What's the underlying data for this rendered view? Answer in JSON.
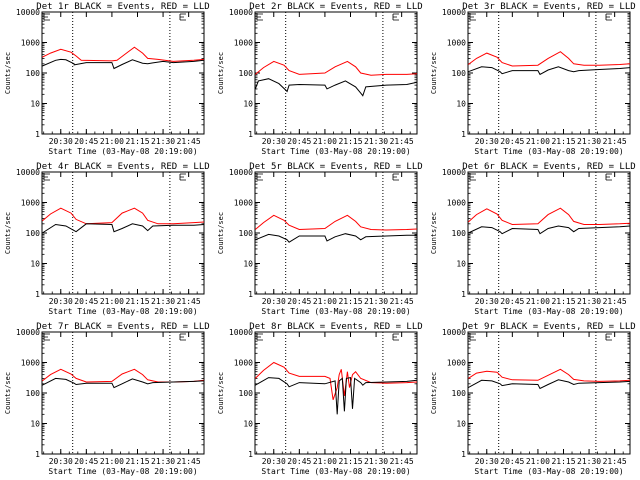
{
  "chart_data": {
    "type": "line",
    "ylabel": "Counts/sec",
    "xlabel": "Start Time (03-May-08 20:19:00)",
    "yscale": "log",
    "ylim": [
      1,
      10000
    ],
    "xlim_minutes": [
      20.3167,
      21.9
    ],
    "yticks": [
      "1",
      "10",
      "100",
      "1000",
      "10000"
    ],
    "xticks": [
      "20:30",
      "20:45",
      "21:00",
      "21:15",
      "21:30",
      "21:45"
    ],
    "grid": false,
    "legend": "title",
    "series_colors": {
      "events": "#000000",
      "lld": "#ff0000"
    },
    "vlines": [
      "20:37",
      "21:34"
    ],
    "panels": [
      {
        "title": "Det 1r BLACK = Events, RED = LLD",
        "events": [
          [
            20.32,
            170
          ],
          [
            20.45,
            260
          ],
          [
            20.5,
            280
          ],
          [
            20.55,
            270
          ],
          [
            20.63,
            200
          ],
          [
            20.63,
            185
          ],
          [
            20.75,
            220
          ],
          [
            21.0,
            220
          ],
          [
            21.02,
            140
          ],
          [
            21.1,
            190
          ],
          [
            21.2,
            270
          ],
          [
            21.3,
            210
          ],
          [
            21.35,
            200
          ],
          [
            21.4,
            215
          ],
          [
            21.5,
            240
          ],
          [
            21.6,
            220
          ],
          [
            21.8,
            240
          ],
          [
            21.9,
            260
          ]
        ],
        "lld": [
          [
            20.32,
            330
          ],
          [
            20.4,
            450
          ],
          [
            20.5,
            600
          ],
          [
            20.6,
            480
          ],
          [
            20.65,
            360
          ],
          [
            20.7,
            260
          ],
          [
            21.0,
            250
          ],
          [
            21.05,
            260
          ],
          [
            21.15,
            470
          ],
          [
            21.22,
            700
          ],
          [
            21.3,
            450
          ],
          [
            21.35,
            300
          ],
          [
            21.45,
            280
          ],
          [
            21.6,
            240
          ],
          [
            21.8,
            260
          ],
          [
            21.9,
            280
          ]
        ]
      },
      {
        "title": "Det 2r BLACK = Events, RED = LLD",
        "events": [
          [
            20.32,
            30
          ],
          [
            20.35,
            55
          ],
          [
            20.45,
            65
          ],
          [
            20.55,
            45
          ],
          [
            20.63,
            25
          ],
          [
            20.65,
            40
          ],
          [
            20.75,
            42
          ],
          [
            21.0,
            40
          ],
          [
            21.02,
            30
          ],
          [
            21.1,
            40
          ],
          [
            21.2,
            55
          ],
          [
            21.3,
            35
          ],
          [
            21.35,
            22
          ],
          [
            21.37,
            18
          ],
          [
            21.4,
            35
          ],
          [
            21.6,
            40
          ],
          [
            21.8,
            42
          ],
          [
            21.9,
            50
          ]
        ],
        "lld": [
          [
            20.32,
            90
          ],
          [
            20.4,
            150
          ],
          [
            20.5,
            240
          ],
          [
            20.6,
            180
          ],
          [
            20.65,
            120
          ],
          [
            20.75,
            90
          ],
          [
            21.0,
            100
          ],
          [
            21.1,
            160
          ],
          [
            21.22,
            240
          ],
          [
            21.3,
            160
          ],
          [
            21.35,
            100
          ],
          [
            21.45,
            85
          ],
          [
            21.6,
            90
          ],
          [
            21.8,
            90
          ],
          [
            21.9,
            95
          ]
        ]
      },
      {
        "title": "Det 3r BLACK = Events, RED = LLD",
        "events": [
          [
            20.32,
            110
          ],
          [
            20.45,
            160
          ],
          [
            20.55,
            150
          ],
          [
            20.63,
            110
          ],
          [
            20.65,
            95
          ],
          [
            20.75,
            120
          ],
          [
            21.0,
            120
          ],
          [
            21.02,
            90
          ],
          [
            21.1,
            125
          ],
          [
            21.2,
            160
          ],
          [
            21.3,
            120
          ],
          [
            21.35,
            110
          ],
          [
            21.4,
            120
          ],
          [
            21.6,
            130
          ],
          [
            21.8,
            140
          ],
          [
            21.9,
            150
          ]
        ],
        "lld": [
          [
            20.32,
            190
          ],
          [
            20.4,
            300
          ],
          [
            20.5,
            450
          ],
          [
            20.6,
            330
          ],
          [
            20.65,
            220
          ],
          [
            20.75,
            170
          ],
          [
            21.0,
            180
          ],
          [
            21.1,
            300
          ],
          [
            21.22,
            500
          ],
          [
            21.3,
            300
          ],
          [
            21.35,
            200
          ],
          [
            21.45,
            180
          ],
          [
            21.6,
            180
          ],
          [
            21.8,
            190
          ],
          [
            21.9,
            200
          ]
        ]
      },
      {
        "title": "Det 4r BLACK = Events, RED = LLD",
        "events": [
          [
            20.32,
            100
          ],
          [
            20.45,
            190
          ],
          [
            20.55,
            170
          ],
          [
            20.63,
            120
          ],
          [
            20.65,
            110
          ],
          [
            20.75,
            200
          ],
          [
            21.0,
            190
          ],
          [
            21.02,
            110
          ],
          [
            21.1,
            140
          ],
          [
            21.2,
            200
          ],
          [
            21.3,
            170
          ],
          [
            21.35,
            120
          ],
          [
            21.4,
            170
          ],
          [
            21.6,
            180
          ],
          [
            21.8,
            180
          ],
          [
            21.9,
            190
          ]
        ],
        "lld": [
          [
            20.32,
            250
          ],
          [
            20.4,
            420
          ],
          [
            20.5,
            650
          ],
          [
            20.6,
            450
          ],
          [
            20.65,
            280
          ],
          [
            20.75,
            200
          ],
          [
            21.0,
            220
          ],
          [
            21.1,
            450
          ],
          [
            21.22,
            650
          ],
          [
            21.3,
            450
          ],
          [
            21.35,
            260
          ],
          [
            21.45,
            200
          ],
          [
            21.6,
            200
          ],
          [
            21.8,
            220
          ],
          [
            21.9,
            230
          ]
        ]
      },
      {
        "title": "Det 5r BLACK = Events, RED = LLD",
        "events": [
          [
            20.32,
            60
          ],
          [
            20.45,
            90
          ],
          [
            20.55,
            80
          ],
          [
            20.63,
            60
          ],
          [
            20.65,
            50
          ],
          [
            20.75,
            80
          ],
          [
            21.0,
            80
          ],
          [
            21.02,
            55
          ],
          [
            21.1,
            75
          ],
          [
            21.2,
            95
          ],
          [
            21.3,
            80
          ],
          [
            21.35,
            60
          ],
          [
            21.4,
            75
          ],
          [
            21.6,
            80
          ],
          [
            21.8,
            85
          ],
          [
            21.9,
            85
          ]
        ],
        "lld": [
          [
            20.32,
            130
          ],
          [
            20.4,
            220
          ],
          [
            20.5,
            380
          ],
          [
            20.6,
            260
          ],
          [
            20.65,
            180
          ],
          [
            20.75,
            130
          ],
          [
            21.0,
            140
          ],
          [
            21.1,
            240
          ],
          [
            21.22,
            380
          ],
          [
            21.3,
            240
          ],
          [
            21.35,
            160
          ],
          [
            21.45,
            130
          ],
          [
            21.6,
            125
          ],
          [
            21.8,
            130
          ],
          [
            21.9,
            135
          ]
        ]
      },
      {
        "title": "Det 6r BLACK = Events, RED = LLD",
        "events": [
          [
            20.32,
            100
          ],
          [
            20.45,
            160
          ],
          [
            20.55,
            150
          ],
          [
            20.63,
            110
          ],
          [
            20.65,
            95
          ],
          [
            20.75,
            140
          ],
          [
            21.0,
            130
          ],
          [
            21.02,
            95
          ],
          [
            21.1,
            140
          ],
          [
            21.2,
            170
          ],
          [
            21.3,
            150
          ],
          [
            21.35,
            110
          ],
          [
            21.4,
            140
          ],
          [
            21.6,
            150
          ],
          [
            21.8,
            160
          ],
          [
            21.9,
            170
          ]
        ],
        "lld": [
          [
            20.32,
            230
          ],
          [
            20.4,
            400
          ],
          [
            20.5,
            620
          ],
          [
            20.6,
            420
          ],
          [
            20.65,
            260
          ],
          [
            20.75,
            190
          ],
          [
            21.0,
            200
          ],
          [
            21.1,
            400
          ],
          [
            21.22,
            650
          ],
          [
            21.3,
            400
          ],
          [
            21.35,
            240
          ],
          [
            21.45,
            190
          ],
          [
            21.6,
            190
          ],
          [
            21.8,
            200
          ],
          [
            21.9,
            210
          ]
        ]
      },
      {
        "title": "Det 7r BLACK = Events, RED = LLD",
        "events": [
          [
            20.32,
            180
          ],
          [
            20.45,
            300
          ],
          [
            20.55,
            280
          ],
          [
            20.63,
            210
          ],
          [
            20.65,
            190
          ],
          [
            20.75,
            210
          ],
          [
            21.0,
            210
          ],
          [
            21.02,
            150
          ],
          [
            21.1,
            200
          ],
          [
            21.2,
            290
          ],
          [
            21.3,
            230
          ],
          [
            21.35,
            200
          ],
          [
            21.4,
            220
          ],
          [
            21.6,
            230
          ],
          [
            21.8,
            240
          ],
          [
            21.9,
            250
          ]
        ],
        "lld": [
          [
            20.32,
            250
          ],
          [
            20.4,
            400
          ],
          [
            20.5,
            600
          ],
          [
            20.6,
            420
          ],
          [
            20.65,
            300
          ],
          [
            20.75,
            230
          ],
          [
            21.0,
            240
          ],
          [
            21.1,
            420
          ],
          [
            21.22,
            600
          ],
          [
            21.3,
            400
          ],
          [
            21.35,
            270
          ],
          [
            21.45,
            230
          ],
          [
            21.6,
            230
          ],
          [
            21.8,
            240
          ],
          [
            21.9,
            260
          ]
        ]
      },
      {
        "title": "Det 8r BLACK = Events, RED = LLD",
        "events": [
          [
            20.32,
            180
          ],
          [
            20.45,
            320
          ],
          [
            20.55,
            300
          ],
          [
            20.63,
            200
          ],
          [
            20.65,
            160
          ],
          [
            20.75,
            220
          ],
          [
            21.0,
            200
          ],
          [
            21.1,
            250
          ],
          [
            21.12,
            20
          ],
          [
            21.14,
            250
          ],
          [
            21.17,
            300
          ],
          [
            21.19,
            25
          ],
          [
            21.21,
            300
          ],
          [
            21.25,
            320
          ],
          [
            21.27,
            30
          ],
          [
            21.29,
            300
          ],
          [
            21.35,
            220
          ],
          [
            21.37,
            180
          ],
          [
            21.4,
            220
          ],
          [
            21.6,
            230
          ],
          [
            21.8,
            240
          ],
          [
            21.9,
            260
          ]
        ],
        "lld": [
          [
            20.32,
            300
          ],
          [
            20.4,
            550
          ],
          [
            20.5,
            1000
          ],
          [
            20.6,
            700
          ],
          [
            20.65,
            450
          ],
          [
            20.75,
            350
          ],
          [
            21.0,
            350
          ],
          [
            21.05,
            300
          ],
          [
            21.08,
            60
          ],
          [
            21.12,
            150
          ],
          [
            21.14,
            400
          ],
          [
            21.16,
            600
          ],
          [
            21.19,
            80
          ],
          [
            21.22,
            500
          ],
          [
            21.24,
            150
          ],
          [
            21.27,
            400
          ],
          [
            21.3,
            500
          ],
          [
            21.35,
            300
          ],
          [
            21.45,
            220
          ],
          [
            21.6,
            210
          ],
          [
            21.8,
            220
          ],
          [
            21.9,
            230
          ]
        ]
      },
      {
        "title": "Det 9r BLACK = Events, RED = LLD",
        "events": [
          [
            20.32,
            150
          ],
          [
            20.45,
            260
          ],
          [
            20.55,
            250
          ],
          [
            20.63,
            200
          ],
          [
            20.65,
            175
          ],
          [
            20.75,
            200
          ],
          [
            21.0,
            190
          ],
          [
            21.02,
            140
          ],
          [
            21.1,
            190
          ],
          [
            21.2,
            270
          ],
          [
            21.3,
            230
          ],
          [
            21.35,
            190
          ],
          [
            21.4,
            210
          ],
          [
            21.6,
            220
          ],
          [
            21.8,
            230
          ],
          [
            21.9,
            240
          ]
        ],
        "lld": [
          [
            20.32,
            300
          ],
          [
            20.4,
            450
          ],
          [
            20.5,
            520
          ],
          [
            20.6,
            480
          ],
          [
            20.65,
            330
          ],
          [
            20.75,
            270
          ],
          [
            21.0,
            260
          ],
          [
            21.1,
            380
          ],
          [
            21.22,
            600
          ],
          [
            21.3,
            400
          ],
          [
            21.35,
            280
          ],
          [
            21.45,
            250
          ],
          [
            21.6,
            240
          ],
          [
            21.8,
            250
          ],
          [
            21.9,
            260
          ]
        ]
      }
    ]
  }
}
